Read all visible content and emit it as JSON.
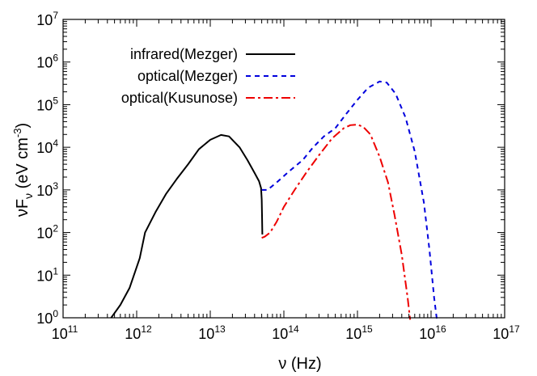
{
  "chart_data": {
    "type": "line",
    "title": "",
    "xscale": "log",
    "yscale": "log",
    "xlim": [
      100000000000.0,
      1e+17
    ],
    "ylim": [
      1,
      10000000.0
    ],
    "xlabel": {
      "prefix": "ν (Hz)"
    },
    "ylabel": {
      "main": "νF",
      "subscript": "ν",
      "units_prefix": " (eV cm",
      "units_superscript": "-3",
      "units_suffix": ")"
    },
    "x_ticks": [
      {
        "base": "10",
        "exp": "11",
        "value": 100000000000.0
      },
      {
        "base": "10",
        "exp": "12",
        "value": 1000000000000.0
      },
      {
        "base": "10",
        "exp": "13",
        "value": 10000000000000.0
      },
      {
        "base": "10",
        "exp": "14",
        "value": 100000000000000.0
      },
      {
        "base": "10",
        "exp": "15",
        "value": 1000000000000000.0
      },
      {
        "base": "10",
        "exp": "16",
        "value": 1e+16
      },
      {
        "base": "10",
        "exp": "17",
        "value": 1e+17
      }
    ],
    "y_ticks": [
      {
        "base": "10",
        "exp": "0",
        "value": 1
      },
      {
        "base": "10",
        "exp": "1",
        "value": 10
      },
      {
        "base": "10",
        "exp": "2",
        "value": 100
      },
      {
        "base": "10",
        "exp": "3",
        "value": 1000
      },
      {
        "base": "10",
        "exp": "4",
        "value": 10000
      },
      {
        "base": "10",
        "exp": "5",
        "value": 100000
      },
      {
        "base": "10",
        "exp": "6",
        "value": 1000000
      },
      {
        "base": "10",
        "exp": "7",
        "value": 10000000
      }
    ],
    "legend_position": "top-left",
    "grid": false,
    "series": [
      {
        "name": "infrared(Mezger)",
        "color": "#000000",
        "dash": "solid",
        "x": [
          450000000000.0,
          600000000000.0,
          800000000000.0,
          1100000000000.0,
          1300000000000.0,
          1800000000000.0,
          2500000000000.0,
          3500000000000.0,
          5000000000000.0,
          7000000000000.0,
          10000000000000.0,
          14000000000000.0,
          18000000000000.0,
          25000000000000.0,
          32000000000000.0,
          40000000000000.0,
          46000000000000.0,
          49000000000000.0,
          50000000000000.0,
          50500000000000.0,
          51000000000000.0
        ],
        "y": [
          1.0,
          2.0,
          5.0,
          25,
          100,
          300,
          800,
          1800,
          4000,
          9000,
          15000,
          19500,
          18000,
          10000,
          5000,
          2500,
          1600,
          1100,
          600,
          250,
          90
        ]
      },
      {
        "name": "optical(Mezger)",
        "color": "#0000dd",
        "dash": "6,5",
        "x": [
          50000000000000.0,
          60000000000000.0,
          80000000000000.0,
          120000000000000.0,
          180000000000000.0,
          250000000000000.0,
          350000000000000.0,
          500000000000000.0,
          700000000000000.0,
          1000000000000000.0,
          1400000000000000.0,
          2000000000000000.0,
          2500000000000000.0,
          3300000000000000.0,
          4500000000000000.0,
          6000000000000000.0,
          8000000000000000.0,
          9500000000000000.0,
          1.1e+16,
          1.2e+16
        ],
        "y": [
          1000,
          1000,
          1500,
          2800,
          5000,
          10000,
          18000,
          28000,
          60000,
          130000,
          250000,
          350000,
          330000,
          180000,
          50000,
          8000,
          500,
          40,
          3,
          0.9
        ]
      },
      {
        "name": "optical(Kusunose)",
        "color": "#ee0000",
        "dash": "11,4,3,4",
        "x": [
          50000000000000.0,
          55000000000000.0,
          65000000000000.0,
          80000000000000.0,
          100000000000000.0,
          140000000000000.0,
          200000000000000.0,
          300000000000000.0,
          450000000000000.0,
          650000000000000.0,
          800000000000000.0,
          1000000000000000.0,
          1200000000000000.0,
          1500000000000000.0,
          2000000000000000.0,
          2600000000000000.0,
          3200000000000000.0,
          4000000000000000.0,
          4800000000000000.0,
          5200000000000000.0
        ],
        "y": [
          75,
          80,
          100,
          180,
          400,
          1000,
          2500,
          6500,
          16000,
          28000,
          33000,
          34000,
          30000,
          20000,
          6000,
          1500,
          250,
          30,
          3,
          0.9
        ]
      }
    ]
  }
}
